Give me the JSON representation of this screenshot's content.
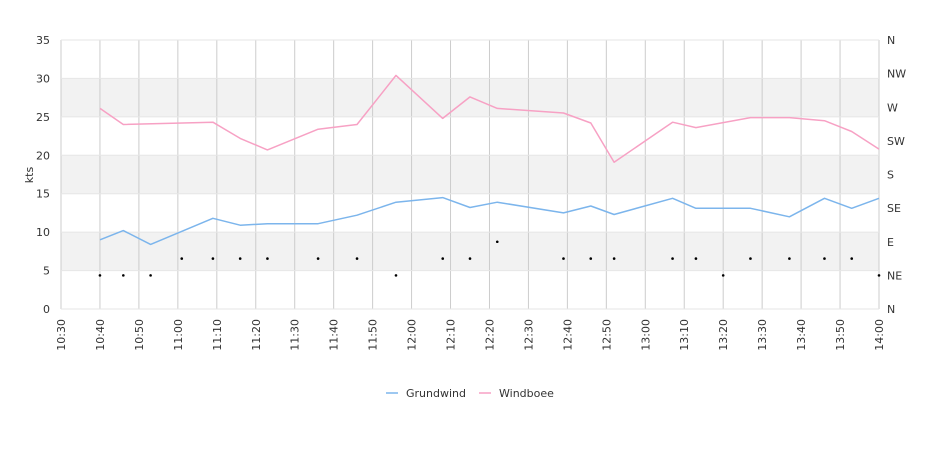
{
  "chart_data": {
    "type": "line",
    "ylabel": "kts",
    "ylim": [
      0,
      35
    ],
    "yticks": [
      0,
      5,
      10,
      15,
      20,
      25,
      30,
      35
    ],
    "xrange": [
      "10:30",
      "14:00"
    ],
    "xticks": [
      "10:30",
      "10:40",
      "10:50",
      "11:00",
      "11:10",
      "11:20",
      "11:30",
      "11:40",
      "11:50",
      "12:00",
      "12:10",
      "12:20",
      "12:30",
      "12:40",
      "12:50",
      "13:00",
      "13:10",
      "13:20",
      "13:30",
      "13:40",
      "13:50",
      "14:00"
    ],
    "right_axis": {
      "labels": [
        "N",
        "NE",
        "E",
        "SE",
        "S",
        "SW",
        "W",
        "NW",
        "N"
      ],
      "range": [
        0,
        360
      ]
    },
    "grid": "alternating horizontal bands with vertical gridlines",
    "legend_position": "bottom-center",
    "series": [
      {
        "name": "Grundwind",
        "color": "#7cb5ec",
        "x": [
          "10:40",
          "10:46",
          "10:53",
          "11:09",
          "11:16",
          "11:23",
          "11:36",
          "11:46",
          "11:56",
          "12:08",
          "12:15",
          "12:22",
          "12:39",
          "12:46",
          "12:52",
          "13:07",
          "13:13",
          "13:27",
          "13:37",
          "13:46",
          "13:53",
          "14:00"
        ],
        "values": [
          9.0,
          10.2,
          8.4,
          11.8,
          10.9,
          11.1,
          11.1,
          12.2,
          13.9,
          14.5,
          13.2,
          13.9,
          12.5,
          13.4,
          12.3,
          14.4,
          13.1,
          13.1,
          12.0,
          14.4,
          13.1,
          14.4
        ]
      },
      {
        "name": "Windboee",
        "color": "#f7a1c4",
        "x": [
          "10:40",
          "10:46",
          "11:09",
          "11:16",
          "11:23",
          "11:36",
          "11:46",
          "11:56",
          "12:08",
          "12:15",
          "12:22",
          "12:39",
          "12:46",
          "12:52",
          "13:07",
          "13:13",
          "13:27",
          "13:37",
          "13:46",
          "13:53",
          "14:00"
        ],
        "values": [
          26.1,
          24.0,
          24.3,
          22.2,
          20.7,
          23.4,
          24.0,
          30.4,
          24.8,
          27.6,
          26.1,
          25.5,
          24.2,
          19.1,
          24.3,
          23.6,
          24.9,
          24.9,
          24.5,
          23.1,
          20.8
        ]
      },
      {
        "name": "",
        "marker": "dot",
        "color": "#000000",
        "x": [
          "10:40",
          "10:46",
          "10:53",
          "11:01",
          "11:09",
          "11:16",
          "11:23",
          "11:36",
          "11:46",
          "11:56",
          "12:08",
          "12:15",
          "12:22",
          "12:39",
          "12:46",
          "12:52",
          "13:07",
          "13:13",
          "13:20",
          "13:27",
          "13:37",
          "13:46",
          "13:53",
          "14:00"
        ],
        "values": [
          45,
          45,
          45,
          67.5,
          67.5,
          67.5,
          67.5,
          67.5,
          67.5,
          45,
          67.5,
          67.5,
          90,
          67.5,
          67.5,
          67.5,
          67.5,
          67.5,
          45,
          67.5,
          67.5,
          67.5,
          67.5,
          45
        ]
      }
    ]
  }
}
